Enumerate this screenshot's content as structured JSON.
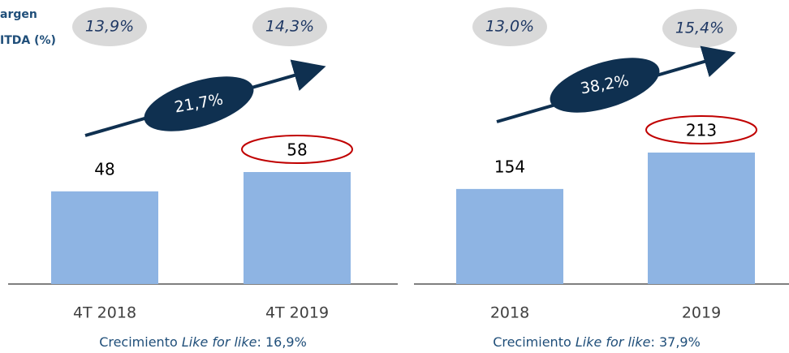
{
  "side_label": [
    "argen",
    "ITDA (%)"
  ],
  "chart_data": [
    {
      "type": "bar",
      "categories": [
        "4T 2018",
        "4T 2019"
      ],
      "values": [
        48,
        58
      ],
      "color": "#8eb4e3",
      "margins": [
        13.9,
        14.3
      ],
      "margin_labels": [
        "13,9%",
        "14,3%"
      ],
      "growth": 21.7,
      "growth_label": "21,7%",
      "footnote": {
        "prefix": "Crecimiento ",
        "italic": "Like for like",
        "suffix": ": 16,9%"
      }
    },
    {
      "type": "bar",
      "categories": [
        "2018",
        "2019"
      ],
      "values": [
        154,
        213
      ],
      "color": "#8eb4e3",
      "margins": [
        13.0,
        15.4
      ],
      "margin_labels": [
        "13,0%",
        "15,4%"
      ],
      "growth": 38.2,
      "growth_label": "38,2%",
      "footnote": {
        "prefix": "Crecimiento ",
        "italic": "Like for like",
        "suffix": ": 37,9%"
      }
    }
  ]
}
